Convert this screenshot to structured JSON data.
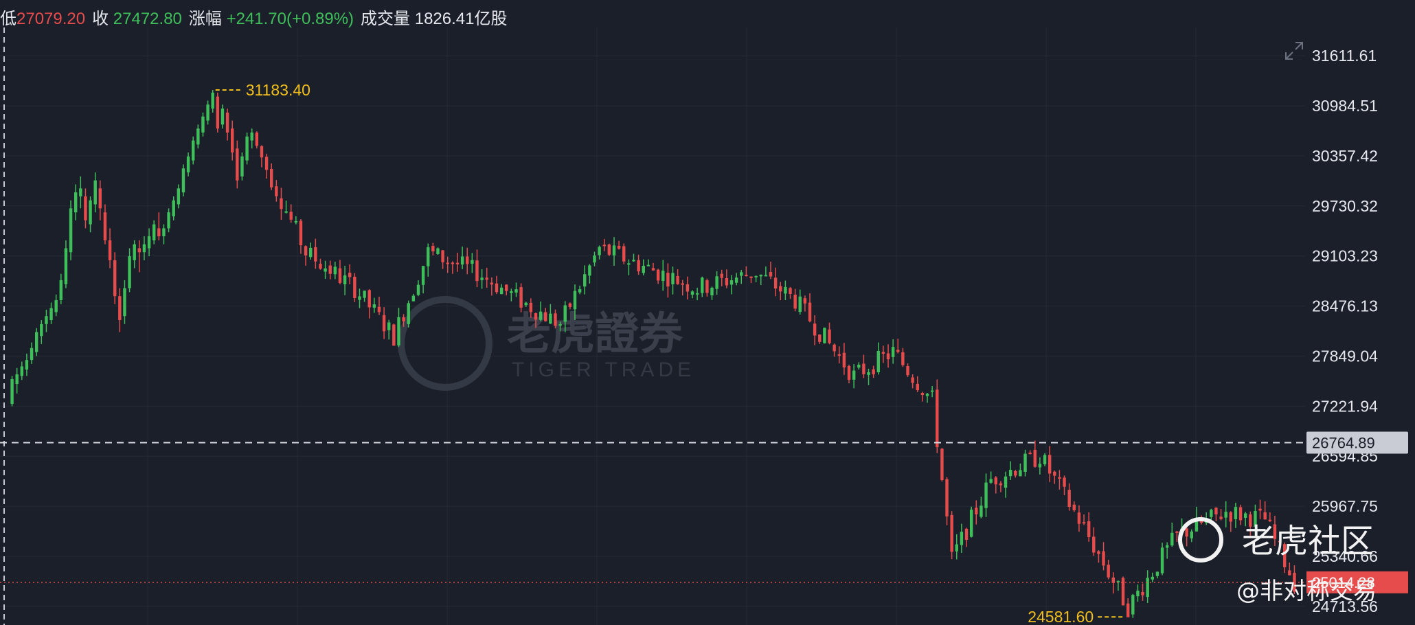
{
  "header": {
    "low_label": "低",
    "low_value": "27079.20",
    "close_label": "收",
    "close_value": "27472.80",
    "change_label": "涨幅",
    "change_value": "+241.70(+0.89%)",
    "volume_label": "成交量",
    "volume_value": "1826.41亿股"
  },
  "colors": {
    "up": "#3fbf5a",
    "down": "#e74c4c",
    "background": "#1b1f2a",
    "grid": "#252a36",
    "highlow": "#f2c01e"
  },
  "icons": {
    "expand": "expand-arrows-icon",
    "community_logo": "tiger-logo-icon"
  },
  "watermark": {
    "brand_cn": "老虎證券",
    "brand_en": "TIGER TRADE",
    "community": "老虎社区",
    "author": "@非对称交易"
  },
  "chart_data": {
    "type": "candlestick",
    "title": "",
    "xlabel": "",
    "ylabel": "",
    "ylim": [
      24480,
      31880
    ],
    "y_ticks": [
      "31611.61",
      "30984.51",
      "30357.42",
      "29730.32",
      "29103.23",
      "28476.13",
      "27849.04",
      "27221.94",
      "26594.85",
      "25967.75",
      "25340.66",
      "24713.56"
    ],
    "y_tick_values": [
      31611.61,
      30984.51,
      30357.42,
      29730.32,
      29103.23,
      28476.13,
      27849.04,
      27221.94,
      26594.85,
      25967.75,
      25340.66,
      24713.56
    ],
    "high_marker": {
      "label": "31183.40",
      "value": 31183.4,
      "index": 41
    },
    "low_marker": {
      "label": "24581.60",
      "value": 24581.6,
      "index": 228
    },
    "crosshair": {
      "label": "26764.89",
      "value": 26764.89
    },
    "last_price": {
      "label": "25014.28",
      "value": 25014.28
    },
    "candles": [
      [
        27250,
        27560,
        27220,
        27600
      ],
      [
        27500,
        27620,
        27380,
        27700
      ],
      [
        27600,
        27720,
        27550,
        27780
      ],
      [
        27680,
        27800,
        27600,
        27880
      ],
      [
        27800,
        27950,
        27750,
        28020
      ],
      [
        27900,
        28150,
        27850,
        28200
      ],
      [
        28100,
        28250,
        28000,
        28300
      ],
      [
        28250,
        28350,
        28150,
        28430
      ],
      [
        28300,
        28450,
        28250,
        28520
      ],
      [
        28400,
        28550,
        28350,
        28620
      ],
      [
        28550,
        28800,
        28500,
        28880
      ],
      [
        28750,
        29200,
        28700,
        29300
      ],
      [
        29150,
        29700,
        29050,
        29800
      ],
      [
        29650,
        29900,
        29550,
        30000
      ],
      [
        29850,
        29950,
        29700,
        30100
      ],
      [
        29850,
        29550,
        29450,
        29950
      ],
      [
        29500,
        29800,
        29400,
        29850
      ],
      [
        29750,
        30050,
        29650,
        30150
      ],
      [
        29950,
        29700,
        29550,
        30050
      ],
      [
        29650,
        29300,
        29250,
        29750
      ],
      [
        29300,
        29050,
        28950,
        29450
      ],
      [
        29050,
        28600,
        28500,
        29150
      ],
      [
        28600,
        28300,
        28150,
        28700
      ],
      [
        28350,
        28700,
        28250,
        28800
      ],
      [
        28700,
        29100,
        28650,
        29200
      ],
      [
        29050,
        29250,
        28950,
        29300
      ],
      [
        29200,
        29150,
        28900,
        29300
      ],
      [
        29150,
        29250,
        29050,
        29350
      ],
      [
        29200,
        29350,
        29100,
        29450
      ],
      [
        29300,
        29500,
        29250,
        29550
      ],
      [
        29450,
        29350,
        29300,
        29650
      ],
      [
        29350,
        29450,
        29250,
        29500
      ],
      [
        29450,
        29650,
        29400,
        29700
      ],
      [
        29600,
        29800,
        29550,
        29850
      ],
      [
        29750,
        29950,
        29700,
        30000
      ],
      [
        29900,
        30200,
        29850,
        30250
      ],
      [
        30150,
        30350,
        30100,
        30400
      ],
      [
        30300,
        30550,
        30250,
        30600
      ],
      [
        30500,
        30700,
        30450,
        30750
      ],
      [
        30650,
        30850,
        30600,
        30900
      ],
      [
        30800,
        31000,
        30750,
        31050
      ],
      [
        30950,
        31150,
        30900,
        31183.4
      ],
      [
        31100,
        30700,
        30650,
        31150
      ],
      [
        30750,
        30950,
        30700,
        31000
      ],
      [
        30900,
        30650,
        30550,
        30950
      ],
      [
        30700,
        30400,
        30300,
        30800
      ],
      [
        30450,
        30050,
        29950,
        30550
      ],
      [
        30100,
        30350,
        30050,
        30400
      ],
      [
        30300,
        30600,
        30250,
        30650
      ],
      [
        30550,
        30650,
        30450,
        30700
      ]
    ]
  }
}
